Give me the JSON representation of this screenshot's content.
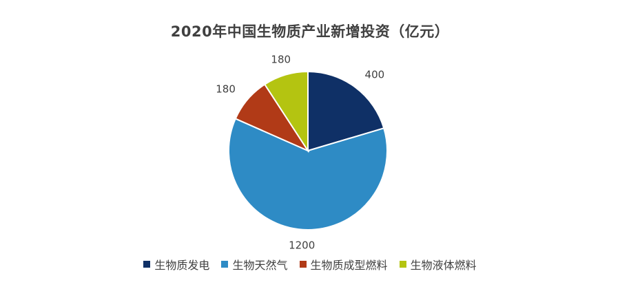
{
  "chart_data": {
    "type": "pie",
    "title": "2020年中国生物质产业新增投资（亿元）",
    "categories": [
      "生物质发电",
      "生物天然气",
      "生物质成型燃料",
      "生物液体燃料"
    ],
    "values": [
      400,
      1200,
      180,
      180
    ],
    "colors": [
      "#0f3066",
      "#2e8bc5",
      "#b13a17",
      "#b4c411"
    ],
    "legend_position": "bottom",
    "start_angle_deg": 0,
    "direction": "clockwise"
  }
}
